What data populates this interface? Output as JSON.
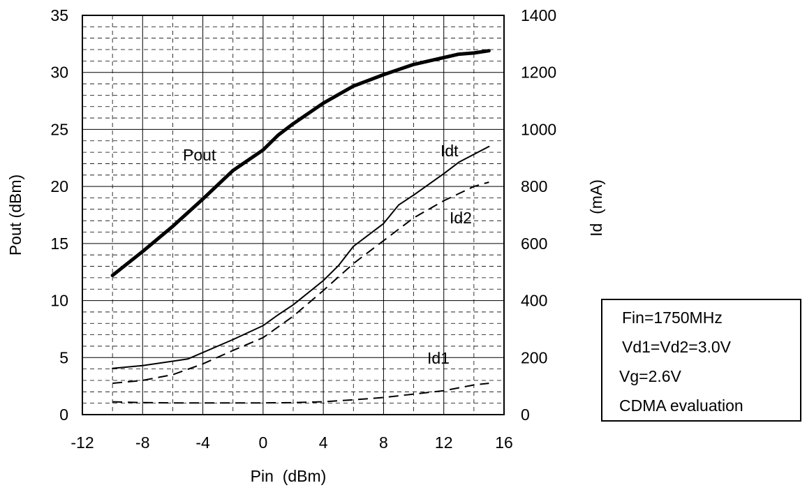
{
  "chart_data": {
    "type": "line",
    "title": "",
    "xlabel": "Pin  (dBm)",
    "ylabel_left": "Pout (dBm)",
    "ylabel_right": "Id  (mA)",
    "xlim": [
      -12,
      16
    ],
    "ylim_left": [
      0,
      35
    ],
    "ylim_right": [
      0,
      1400
    ],
    "x_ticks": [
      "-12",
      "-8",
      "-4",
      "0",
      "4",
      "8",
      "12",
      "16"
    ],
    "y_left_ticks": [
      "0",
      "5",
      "10",
      "15",
      "20",
      "25",
      "30",
      "35"
    ],
    "y_right_ticks": [
      "0",
      "200",
      "400",
      "600",
      "800",
      "1000",
      "1200",
      "1400"
    ],
    "grid": true,
    "series": [
      {
        "name": "Pout",
        "axis": "left",
        "style": "thick",
        "x": [
          -10,
          -8,
          -6,
          -4,
          -2,
          0,
          1,
          2,
          4,
          6,
          8,
          10,
          12,
          13,
          14,
          15
        ],
        "y": [
          12.2,
          14.3,
          16.5,
          18.9,
          21.4,
          23.2,
          24.5,
          25.5,
          27.3,
          28.8,
          29.8,
          30.7,
          31.3,
          31.6,
          31.7,
          31.9
        ]
      },
      {
        "name": "Idt",
        "axis": "right",
        "style": "solid",
        "x": [
          -10,
          -8,
          -5,
          -2,
          0,
          1,
          2,
          4,
          5,
          6,
          8,
          9,
          10,
          12,
          13,
          15
        ],
        "y": [
          162,
          172,
          195,
          263,
          312,
          350,
          385,
          470,
          522,
          590,
          670,
          735,
          770,
          845,
          885,
          940
        ]
      },
      {
        "name": "Id2",
        "axis": "right",
        "style": "dashed",
        "x": [
          -10,
          -8,
          -6,
          -4,
          -2,
          0,
          2,
          4,
          6,
          8,
          10,
          12,
          14,
          15
        ],
        "y": [
          110,
          120,
          140,
          178,
          225,
          270,
          345,
          435,
          530,
          610,
          690,
          750,
          800,
          815
        ]
      },
      {
        "name": "Id1",
        "axis": "right",
        "style": "dashed",
        "x": [
          -10,
          -8,
          -6,
          -4,
          -2,
          0,
          2,
          4,
          6,
          8,
          10,
          12,
          14,
          15
        ],
        "y": [
          45,
          42,
          41,
          41,
          41,
          41,
          42,
          45,
          52,
          60,
          72,
          84,
          104,
          110
        ]
      }
    ],
    "label_positions_note": "",
    "annotation_box": {
      "lines": [
        "Fin=1750MHz",
        "Vd1=Vd2=3.0V",
        "Vg=2.6V",
        "CDMA evaluation"
      ]
    }
  }
}
